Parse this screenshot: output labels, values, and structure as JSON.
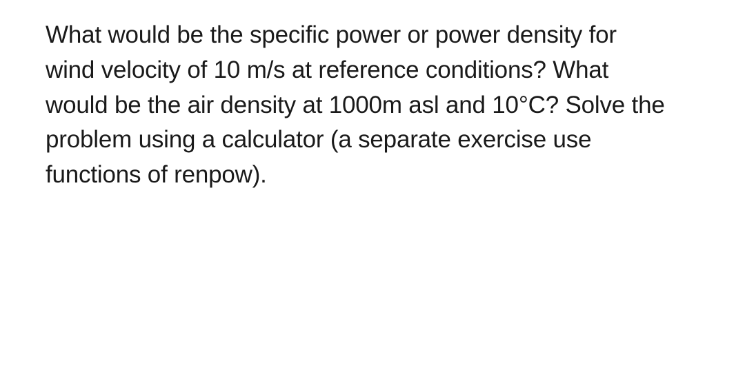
{
  "document": {
    "background_color": "#ffffff",
    "text_color": "#1a1a1a",
    "font_size": 35,
    "line_height": 1.45,
    "question_text": "What would be the specific power or power density for wind velocity of 10 m/s at reference conditions? What would be the air density at 1000m asl and 10°C? Solve the problem using a calculator (a separate exercise use functions of renpow)."
  }
}
